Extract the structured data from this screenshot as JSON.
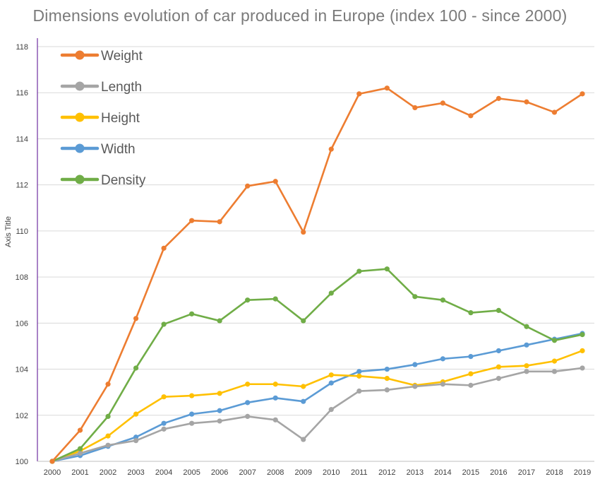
{
  "chart_data": {
    "type": "line",
    "title": "Dimensions evolution of car produced in Europe (index 100 - since 2000)",
    "xlabel": "",
    "ylabel": "Axis Title",
    "x": [
      "2000",
      "2001",
      "2002",
      "2003",
      "2004",
      "2005",
      "2006",
      "2007",
      "2008",
      "2009",
      "2010",
      "2011",
      "2012",
      "2013",
      "2014",
      "2015",
      "2016",
      "2017",
      "2018",
      "2019"
    ],
    "ylim": [
      100,
      118
    ],
    "yticks": [
      "100",
      "102",
      "104",
      "106",
      "108",
      "110",
      "112",
      "114",
      "116",
      "118"
    ],
    "grid": true,
    "legend_position": "top-left",
    "series": [
      {
        "name": "Weight",
        "color": "#ED7D31",
        "values": [
          100,
          101.35,
          103.35,
          106.2,
          109.25,
          110.45,
          110.4,
          111.95,
          112.15,
          109.95,
          113.55,
          115.95,
          116.2,
          115.35,
          115.55,
          115.0,
          115.75,
          115.6,
          115.15,
          115.95
        ]
      },
      {
        "name": "Length",
        "color": "#A5A5A5",
        "values": [
          100,
          100.35,
          100.7,
          100.9,
          101.4,
          101.65,
          101.75,
          101.95,
          101.8,
          100.95,
          102.25,
          103.05,
          103.1,
          103.25,
          103.35,
          103.3,
          103.6,
          103.9,
          103.9,
          104.05
        ]
      },
      {
        "name": "Height",
        "color": "#FFC000",
        "values": [
          100,
          100.45,
          101.1,
          102.05,
          102.8,
          102.85,
          102.95,
          103.35,
          103.35,
          103.25,
          103.75,
          103.7,
          103.6,
          103.3,
          103.45,
          103.8,
          104.1,
          104.15,
          104.35,
          104.8
        ]
      },
      {
        "name": "Width",
        "color": "#5B9BD5",
        "values": [
          100,
          100.25,
          100.65,
          101.05,
          101.65,
          102.05,
          102.2,
          102.55,
          102.75,
          102.6,
          103.4,
          103.9,
          104.0,
          104.2,
          104.45,
          104.55,
          104.8,
          105.05,
          105.3,
          105.55
        ]
      },
      {
        "name": "Density",
        "color": "#70AD47",
        "values": [
          100,
          100.55,
          101.95,
          104.05,
          105.95,
          106.4,
          106.1,
          107.0,
          107.05,
          106.1,
          107.3,
          108.25,
          108.35,
          107.15,
          107.0,
          106.45,
          106.55,
          105.85,
          105.25,
          105.5
        ]
      }
    ]
  }
}
